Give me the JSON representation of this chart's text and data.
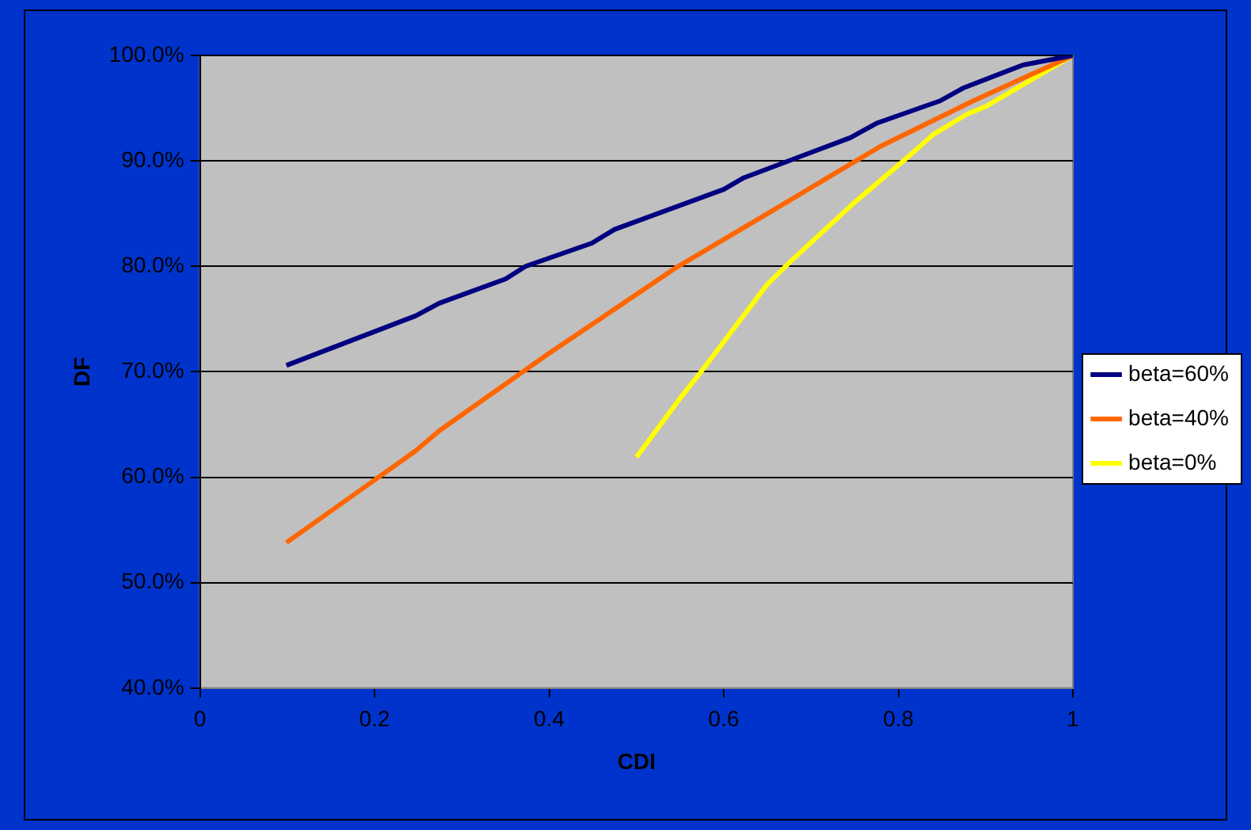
{
  "chart_data": {
    "type": "line",
    "xlabel": "CDI",
    "ylabel": "DF",
    "xlim": [
      0,
      1
    ],
    "xticks": [
      0,
      0.2,
      0.4,
      0.6,
      0.8,
      1
    ],
    "ylim": [
      40,
      100
    ],
    "yticks": [
      {
        "value": 40,
        "label": "40.0%"
      },
      {
        "value": 50,
        "label": "50.0%"
      },
      {
        "value": 60,
        "label": "60.0%"
      },
      {
        "value": 70,
        "label": "70.0%"
      },
      {
        "value": 80,
        "label": "80.0%"
      },
      {
        "value": 90,
        "label": "90.0%"
      },
      {
        "value": 100,
        "label": "100.0%"
      }
    ],
    "grid": "y",
    "legend": "right",
    "marker": "none",
    "line_style": "solid",
    "series": [
      {
        "name": "beta=60%",
        "color": "#000080",
        "x": [
          0.099,
          0.247,
          0.274,
          0.35,
          0.373,
          0.449,
          0.475,
          0.6,
          0.623,
          0.745,
          0.776,
          0.848,
          0.874,
          0.943,
          1
        ],
        "values": [
          70.6,
          75.3,
          76.5,
          78.8,
          80.0,
          82.2,
          83.5,
          87.3,
          88.4,
          92.2,
          93.6,
          95.7,
          96.9,
          99.1,
          100
        ]
      },
      {
        "name": "beta=40%",
        "color": "#ff6600",
        "x": [
          0.099,
          0.247,
          0.274,
          0.399,
          0.544,
          0.646,
          0.719,
          0.78,
          0.886,
          1
        ],
        "values": [
          53.8,
          62.5,
          64.4,
          71.7,
          79.8,
          84.8,
          88.4,
          91.4,
          95.7,
          100
        ]
      },
      {
        "name": "beta=0%",
        "color": "#ffff00",
        "x": [
          0.5,
          0.551,
          0.574,
          0.65,
          0.677,
          0.749,
          0.81,
          0.84,
          0.878,
          0.901,
          1
        ],
        "values": [
          61.9,
          67.6,
          70.0,
          78.3,
          80.5,
          86.0,
          90.3,
          92.5,
          94.4,
          95.2,
          100
        ]
      }
    ]
  }
}
